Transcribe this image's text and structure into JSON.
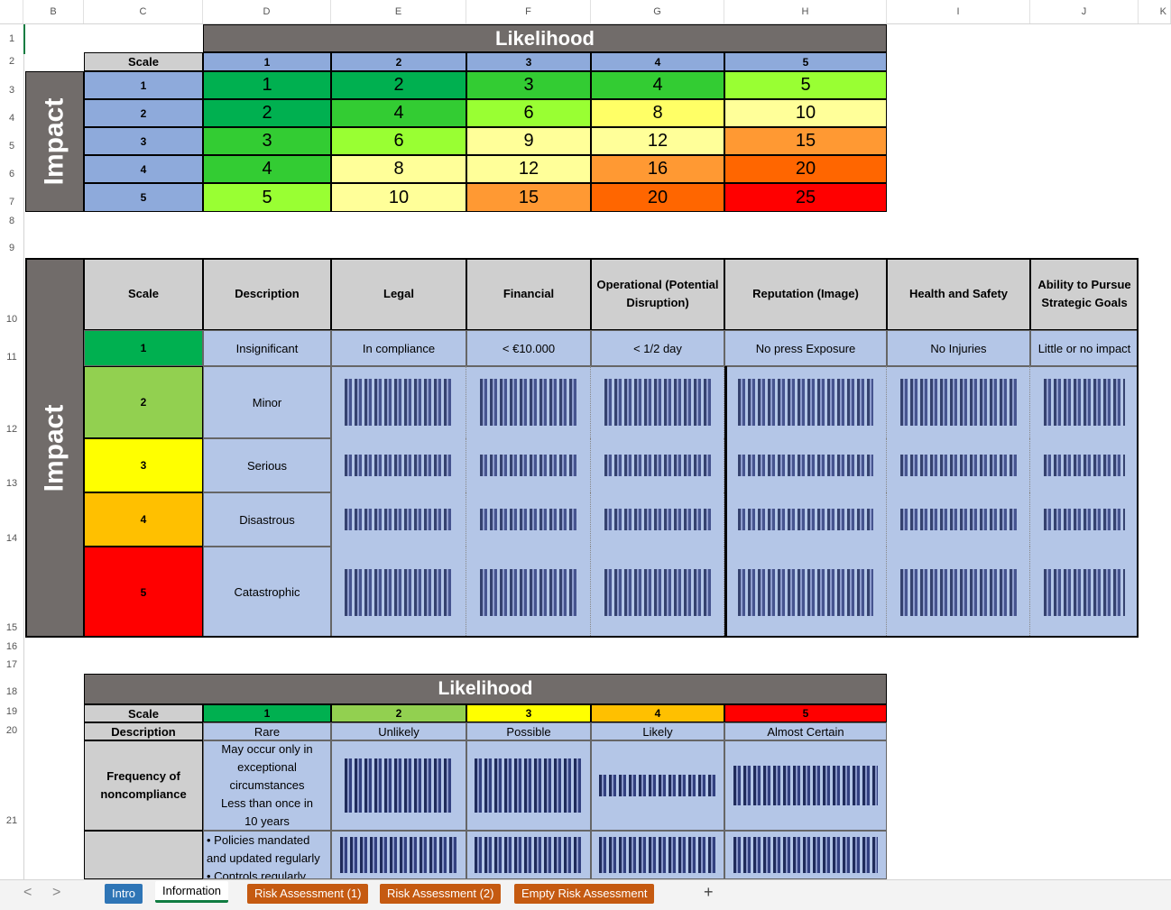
{
  "columns": [
    "B",
    "C",
    "D",
    "E",
    "F",
    "G",
    "H",
    "I",
    "J",
    "K"
  ],
  "rows": [
    "1",
    "2",
    "3",
    "4",
    "5",
    "6",
    "7",
    "8",
    "9",
    "10",
    "11",
    "12",
    "13",
    "14",
    "15",
    "16",
    "17",
    "18",
    "19",
    "20",
    "21"
  ],
  "matrix": {
    "likelihood_title": "Likelihood",
    "impact_title": "Impact",
    "scale_label": "Scale",
    "col_heads": [
      "1",
      "2",
      "3",
      "4",
      "5"
    ],
    "row_heads": [
      "1",
      "2",
      "3",
      "4",
      "5"
    ],
    "cells": [
      [
        "1",
        "2",
        "3",
        "4",
        "5"
      ],
      [
        "2",
        "4",
        "6",
        "8",
        "10"
      ],
      [
        "3",
        "6",
        "9",
        "12",
        "15"
      ],
      [
        "4",
        "8",
        "12",
        "16",
        "20"
      ],
      [
        "5",
        "10",
        "15",
        "20",
        "25"
      ]
    ],
    "colors": [
      [
        "#00b050",
        "#00b050",
        "#33cc33",
        "#33cc33",
        "#99ff33"
      ],
      [
        "#00b050",
        "#33cc33",
        "#99ff33",
        "#ffff66",
        "#ffff99"
      ],
      [
        "#33cc33",
        "#99ff33",
        "#ffff99",
        "#ffff99",
        "#ff9933"
      ],
      [
        "#33cc33",
        "#ffff99",
        "#ffff99",
        "#ff9933",
        "#ff6600"
      ],
      [
        "#99ff33",
        "#ffff99",
        "#ff9933",
        "#ff6600",
        "#ff0000"
      ]
    ]
  },
  "impact_table": {
    "title": "Impact",
    "headers": [
      "Scale",
      "Description",
      "Legal",
      "Financial",
      "Operational (Potential Disruption)",
      "Reputation (Image)",
      "Health and Safety",
      "Ability to Pursue Strategic Goals"
    ],
    "row1": [
      "1",
      "Insignificant",
      "In compliance",
      "< €10.000",
      "< 1/2 day",
      "No press Exposure",
      "No Injuries",
      "Little or no impact"
    ],
    "scales": [
      "2",
      "3",
      "4",
      "5"
    ],
    "scale_colors": [
      "#92d050",
      "#ffff00",
      "#ffc000",
      "#ff0000"
    ],
    "descriptions": [
      "Minor",
      "Serious",
      "Disastrous",
      "Catastrophic"
    ]
  },
  "likelihood_table": {
    "title": "Likelihood",
    "scale_label": "Scale",
    "scales": [
      "1",
      "2",
      "3",
      "4",
      "5"
    ],
    "scale_colors": [
      "#00b050",
      "#92d050",
      "#ffff00",
      "#ffc000",
      "#ff0000"
    ],
    "description_label": "Description",
    "descriptions": [
      "Rare",
      "Unlikely",
      "Possible",
      "Likely",
      "Almost Certain"
    ],
    "frequency_label": "Frequency of noncompliance",
    "rare_text1": "May occur only in exceptional circumstances",
    "rare_text2": "Less than once in 10 years",
    "row22_text1": "• Policies mandated and updated regularly",
    "row22_text2": "• Controls regularly"
  },
  "tabs": {
    "prev": "<",
    "next": ">",
    "items": [
      "Intro",
      "Information",
      "Risk Assessment (1)",
      "Risk Assessment (2)",
      "Empty Risk Assessment"
    ],
    "add": "+"
  }
}
